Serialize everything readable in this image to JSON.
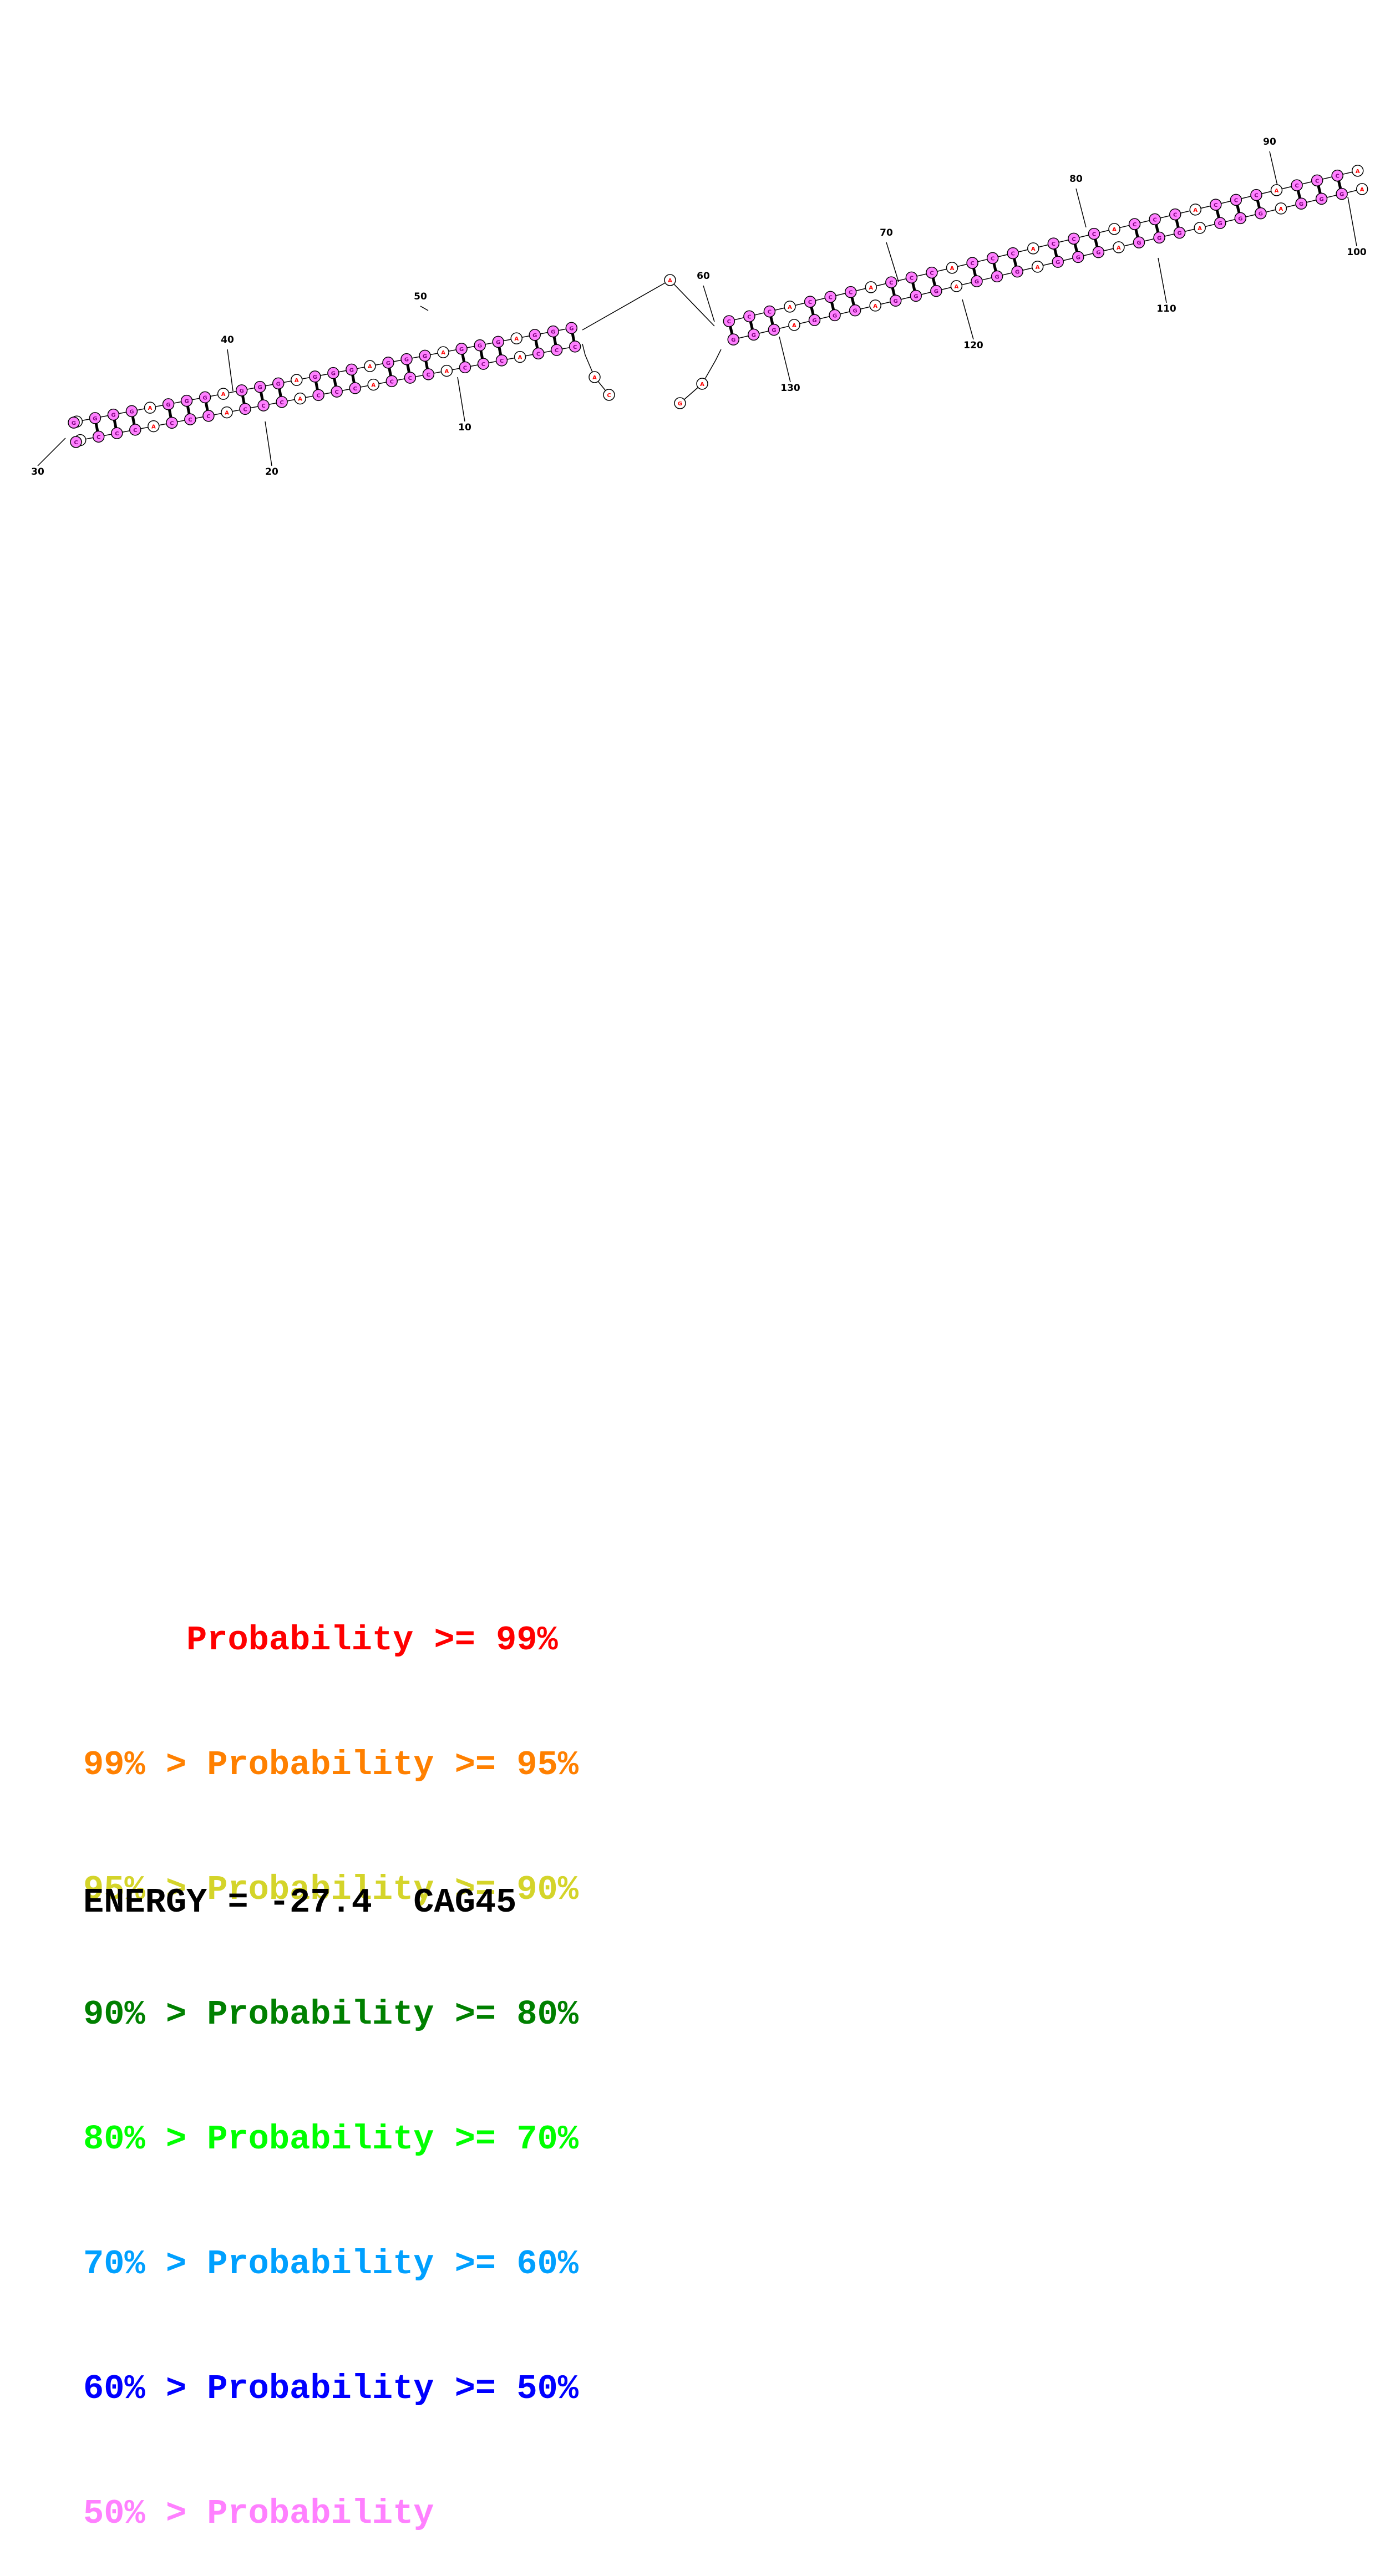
{
  "diagram": {
    "nucleotide_labels": {
      "adenine": "A",
      "cytosine": "C",
      "guanine": "G"
    },
    "position_labels": [
      "10",
      "20",
      "30",
      "40",
      "50",
      "60",
      "70",
      "80",
      "90",
      "100",
      "110",
      "120",
      "130"
    ]
  },
  "legend": [
    {
      "text": "     Probability >= 99%",
      "color": "#ff0000"
    },
    {
      "text": "99% > Probability >= 95%",
      "color": "#ff8000"
    },
    {
      "text": "95% > Probability >= 90%",
      "color": "#d4d42a"
    },
    {
      "text": "90% > Probability >= 80%",
      "color": "#008000"
    },
    {
      "text": "80% > Probability >= 70%",
      "color": "#00ff00"
    },
    {
      "text": "70% > Probability >= 60%",
      "color": "#00a0ff"
    },
    {
      "text": "60% > Probability >= 50%",
      "color": "#0000ff"
    },
    {
      "text": "50% > Probability",
      "color": "#ff80ff"
    }
  ],
  "energy": "ENERGY = -27.4  CAG45",
  "colors": {
    "paired": "#ff80ff",
    "unpaired": "#ff0000",
    "line": "#000000"
  }
}
